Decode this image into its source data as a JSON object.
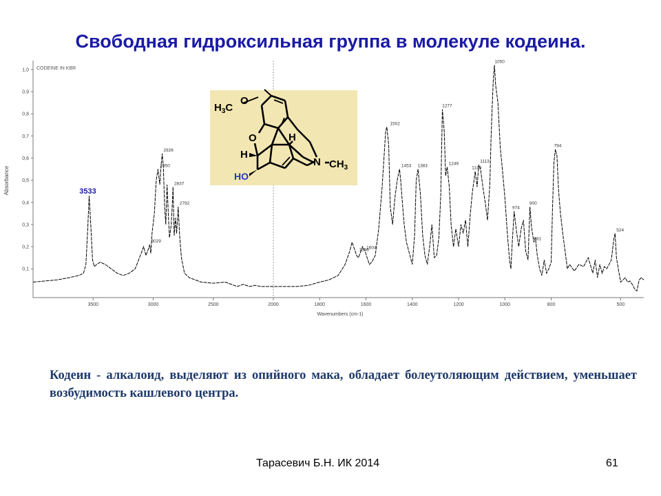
{
  "slide": {
    "title": "Свободная гидроксильная группа в молекуле кодеина.",
    "caption": "Кодеин - алкалоид,  выделяют из опийного мака, обладает болеутоляющим действием, уменьшает возбудимость кашлевого центра.",
    "footer_author": "Тарасевич Б.Н.  ИК 2014",
    "page_number": "61"
  },
  "molecule": {
    "groups": [
      "H3C",
      "O",
      "O",
      "H",
      "H",
      "N",
      "CH3",
      "HO"
    ],
    "background_color": "#f2e6b2",
    "ho_color": "#1a3cc0"
  },
  "chart_data": {
    "type": "line",
    "title": "CODEINE IN KBR",
    "xlabel": "Wavenumbers (cm-1)",
    "ylabel": "Absorbance",
    "xlim": [
      4000,
      400
    ],
    "ylim": [
      -0.03,
      1.04
    ],
    "x_reversed": true,
    "x_ticks": [
      3500,
      3000,
      2500,
      2000,
      1800,
      1600,
      1400,
      1200,
      1000,
      800,
      500
    ],
    "x_tick_labels": [
      "3500",
      "3000",
      "2500",
      "2000",
      "1800",
      "1600",
      "1400",
      "1200",
      "1000",
      "800",
      "500"
    ],
    "y_ticks": [
      0.1,
      0.2,
      0.3,
      0.4,
      0.5,
      0.6,
      0.7,
      0.8,
      0.9,
      1.0
    ],
    "y_tick_labels": [
      "0,1",
      "0,2",
      "0,3",
      "0,4",
      "0,5",
      "0,6",
      "0,7",
      "0,8",
      "0,9",
      "1,0"
    ],
    "x_scale_change_at": 2000,
    "grid": false,
    "series": [
      {
        "x": [
          4000,
          3900,
          3800,
          3700,
          3620,
          3580,
          3560,
          3545,
          3533,
          3520,
          3505,
          3490,
          3470,
          3440,
          3400,
          3350,
          3300,
          3250,
          3200,
          3150,
          3100,
          3080,
          3060,
          3040,
          3029,
          3020,
          3010,
          2990,
          2975,
          2960,
          2945,
          2935,
          2925,
          2915,
          2905,
          2895,
          2885,
          2875,
          2865,
          2850,
          2840,
          2835,
          2830,
          2825,
          2815,
          2805,
          2792,
          2780,
          2765,
          2740,
          2700,
          2600,
          2500,
          2400,
          2300,
          2250,
          2200,
          2150,
          2100,
          2050,
          2000,
          1950,
          1900,
          1850,
          1800,
          1760,
          1720,
          1690,
          1670,
          1660,
          1650,
          1640,
          1633,
          1625,
          1615,
          1604,
          1595,
          1585,
          1575,
          1560,
          1545,
          1530,
          1515,
          1510,
          1502,
          1495,
          1485,
          1475,
          1465,
          1455,
          1450,
          1445,
          1435,
          1425,
          1415,
          1400,
          1390,
          1383,
          1375,
          1365,
          1355,
          1345,
          1335,
          1325,
          1315,
          1305,
          1295,
          1285,
          1277,
          1270,
          1262,
          1256,
          1249,
          1240,
          1232,
          1222,
          1212,
          1200,
          1190,
          1180,
          1170,
          1160,
          1149,
          1140,
          1128,
          1120,
          1113,
          1105,
          1095,
          1085,
          1075,
          1065,
          1060,
          1055,
          1050,
          1045,
          1040,
          1030,
          1020,
          1010,
          1000,
          990,
          980,
          974,
          968,
          960,
          950,
          940,
          930,
          920,
          910,
          900,
          892,
          885,
          881,
          875,
          868,
          860,
          850,
          840,
          830,
          820,
          810,
          800,
          794,
          788,
          782,
          775,
          768,
          760,
          750,
          740,
          730,
          720,
          700,
          680,
          660,
          640,
          620,
          610,
          600,
          590,
          580,
          570,
          560,
          550,
          540,
          530,
          524,
          518,
          510,
          500,
          490,
          480,
          470,
          460,
          450,
          440,
          430,
          420,
          410,
          400
        ],
        "y": [
          0.04,
          0.045,
          0.05,
          0.06,
          0.07,
          0.08,
          0.12,
          0.28,
          0.43,
          0.3,
          0.14,
          0.11,
          0.12,
          0.13,
          0.12,
          0.1,
          0.08,
          0.07,
          0.08,
          0.1,
          0.17,
          0.2,
          0.16,
          0.19,
          0.21,
          0.17,
          0.26,
          0.35,
          0.5,
          0.55,
          0.48,
          0.56,
          0.62,
          0.56,
          0.38,
          0.3,
          0.48,
          0.36,
          0.24,
          0.3,
          0.4,
          0.47,
          0.35,
          0.25,
          0.33,
          0.26,
          0.38,
          0.25,
          0.15,
          0.08,
          0.06,
          0.04,
          0.035,
          0.04,
          0.02,
          0.03,
          0.02,
          0.025,
          0.02,
          0.02,
          0.02,
          0.02,
          0.02,
          0.025,
          0.04,
          0.05,
          0.07,
          0.12,
          0.18,
          0.22,
          0.19,
          0.16,
          0.15,
          0.17,
          0.2,
          0.18,
          0.15,
          0.12,
          0.13,
          0.16,
          0.28,
          0.47,
          0.72,
          0.74,
          0.66,
          0.38,
          0.3,
          0.42,
          0.5,
          0.55,
          0.5,
          0.43,
          0.3,
          0.22,
          0.18,
          0.12,
          0.25,
          0.5,
          0.55,
          0.44,
          0.25,
          0.16,
          0.12,
          0.2,
          0.3,
          0.15,
          0.16,
          0.24,
          0.43,
          0.82,
          0.72,
          0.52,
          0.56,
          0.47,
          0.3,
          0.2,
          0.28,
          0.2,
          0.3,
          0.26,
          0.32,
          0.2,
          0.35,
          0.45,
          0.54,
          0.47,
          0.57,
          0.55,
          0.47,
          0.4,
          0.32,
          0.48,
          0.68,
          0.83,
          0.95,
          1.02,
          0.93,
          0.85,
          0.65,
          0.54,
          0.42,
          0.27,
          0.14,
          0.1,
          0.22,
          0.36,
          0.27,
          0.2,
          0.28,
          0.32,
          0.18,
          0.14,
          0.38,
          0.29,
          0.26,
          0.22,
          0.24,
          0.16,
          0.1,
          0.07,
          0.14,
          0.08,
          0.1,
          0.13,
          0.38,
          0.58,
          0.64,
          0.61,
          0.45,
          0.35,
          0.26,
          0.18,
          0.1,
          0.12,
          0.09,
          0.12,
          0.11,
          0.15,
          0.08,
          0.14,
          0.06,
          0.12,
          0.08,
          0.11,
          0.1,
          0.12,
          0.14,
          0.23,
          0.26,
          0.15,
          0.1,
          0.04,
          0.05,
          0.06,
          0.04,
          0.045,
          0.03,
          0.01,
          0.0,
          0.05,
          0.06,
          0.05
        ]
      }
    ],
    "annotations": [
      {
        "label": "3533",
        "x": 3533,
        "y": 0.43,
        "highlight": true
      },
      {
        "label": "3029",
        "x": 3029,
        "y": 0.21
      },
      {
        "label": "2950",
        "x": 2955,
        "y": 0.55
      },
      {
        "label": "2926",
        "x": 2926,
        "y": 0.62
      },
      {
        "label": "2837",
        "x": 2837,
        "y": 0.47
      },
      {
        "label": "2792",
        "x": 2792,
        "y": 0.38
      },
      {
        "label": "1636",
        "x": 1636,
        "y": 0.17
      },
      {
        "label": "1604",
        "x": 1604,
        "y": 0.18
      },
      {
        "label": "1502",
        "x": 1502,
        "y": 0.74
      },
      {
        "label": "1453",
        "x": 1453,
        "y": 0.55
      },
      {
        "label": "1383",
        "x": 1383,
        "y": 0.55
      },
      {
        "label": "1277",
        "x": 1277,
        "y": 0.82
      },
      {
        "label": "1249",
        "x": 1249,
        "y": 0.56
      },
      {
        "label": "1149",
        "x": 1149,
        "y": 0.54
      },
      {
        "label": "1113",
        "x": 1113,
        "y": 0.57
      },
      {
        "label": "1050",
        "x": 1050,
        "y": 1.02
      },
      {
        "label": "974",
        "x": 974,
        "y": 0.36
      },
      {
        "label": "900",
        "x": 900,
        "y": 0.38
      },
      {
        "label": "881",
        "x": 881,
        "y": 0.22
      },
      {
        "label": "794",
        "x": 794,
        "y": 0.64
      },
      {
        "label": "524",
        "x": 524,
        "y": 0.26
      }
    ],
    "line_color": "#000000",
    "highlight_label_color": "#1a1aa6"
  }
}
